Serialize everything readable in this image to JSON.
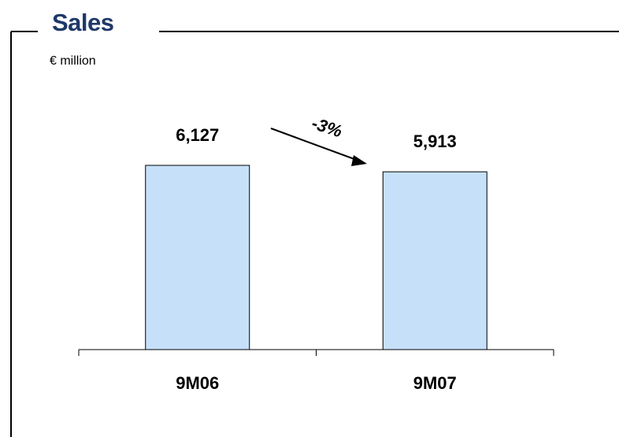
{
  "chart_data": {
    "type": "bar",
    "title": "Sales",
    "subtitle": "€ million",
    "categories": [
      "9M06",
      "9M07"
    ],
    "values": [
      6127,
      5913
    ],
    "value_labels": [
      "6,127",
      "5,913"
    ],
    "annotation": "-3%",
    "ylim": [
      0,
      6500
    ],
    "grid": false,
    "xlabel": "",
    "ylabel": "",
    "colors": {
      "bar_fill": "#c6e0fa",
      "bar_stroke": "#000000",
      "title": "#1f3868",
      "text": "#000000"
    }
  }
}
